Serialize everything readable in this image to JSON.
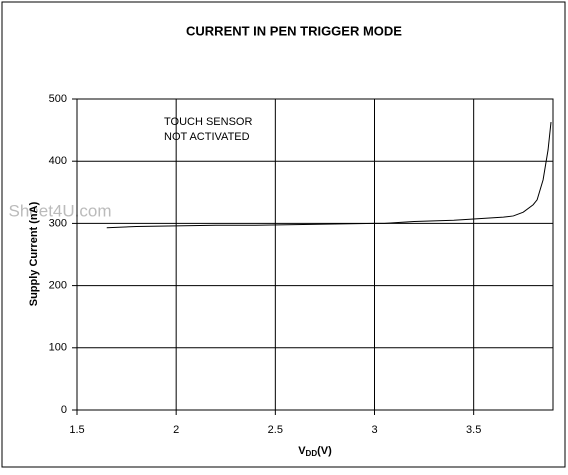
{
  "chart_data": {
    "type": "line",
    "title": "CURRENT IN PEN TRIGGER MODE",
    "x_label": "V",
    "x_label_sub": "DD",
    "x_label_suffix": "(V)",
    "y_label": "Supply Current (nA)",
    "annotation": [
      "TOUCH SENSOR",
      "NOT ACTIVATED"
    ],
    "watermark": "Sheet4U.com",
    "x": [
      1.65,
      1.8,
      2.0,
      2.2,
      2.4,
      2.6,
      2.8,
      3.0,
      3.05,
      3.1,
      3.2,
      3.3,
      3.4,
      3.5,
      3.6,
      3.65,
      3.7,
      3.75,
      3.8,
      3.82,
      3.85,
      3.875,
      3.89
    ],
    "series": [
      {
        "name": "Supply Current",
        "color": "#000000",
        "values": [
          293,
          295,
          296,
          297,
          297,
          298,
          299,
          300,
          300,
          301,
          303,
          304,
          305,
          307,
          309,
          310,
          312,
          318,
          330,
          338,
          370,
          418,
          463
        ]
      }
    ],
    "xlim": [
      1.5,
      3.9
    ],
    "xticks": [
      1.5,
      2,
      2.5,
      3,
      3.5
    ],
    "ylim": [
      0,
      500
    ],
    "yticks": [
      0,
      100,
      200,
      300,
      400,
      500
    ],
    "grid": true
  }
}
